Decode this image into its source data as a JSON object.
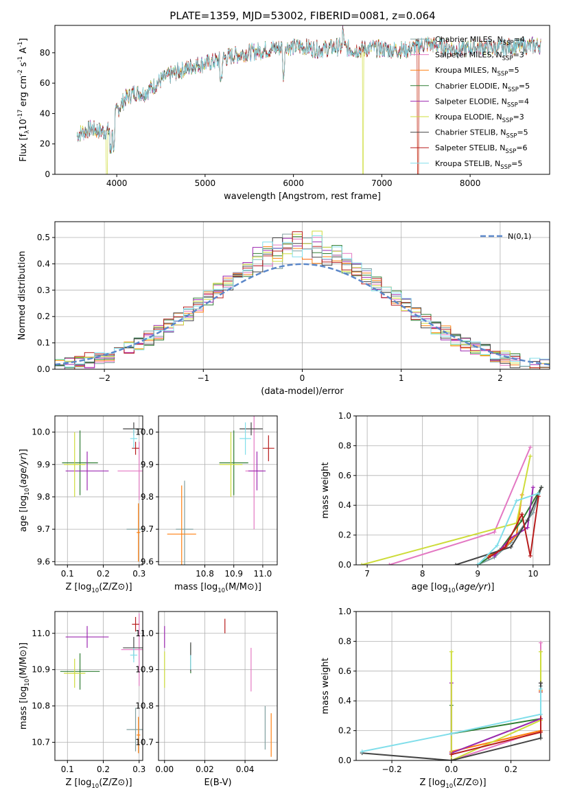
{
  "figure": {
    "title": "PLATE=1359, MJD=53002, FIBERID=0081, z=0.064"
  },
  "models": [
    {
      "label": "Chabrier MILES, N$_{SSP}$=4",
      "color": "#7f9f9f"
    },
    {
      "label": "Salpeter MILES, N$_{SSP}$=3",
      "color": "#e377c2"
    },
    {
      "label": "Kroupa MILES, N$_{SSP}$=5",
      "color": "#ff7f0e"
    },
    {
      "label": "Chabrier ELODIE, N$_{SSP}$=5",
      "color": "#2e7d32"
    },
    {
      "label": "Salpeter ELODIE, N$_{SSP}$=4",
      "color": "#9c27b0"
    },
    {
      "label": "Kroupa ELODIE, N$_{SSP}$=3",
      "color": "#cddc39"
    },
    {
      "label": "Chabrier STELIB, N$_{SSP}$=5",
      "color": "#444444"
    },
    {
      "label": "Salpeter STELIB, N$_{SSP}$=6",
      "color": "#b71c1c"
    },
    {
      "label": "Kroupa STELIB, N$_{SSP}$=5",
      "color": "#80deea"
    }
  ],
  "chart_data": [
    {
      "id": "spectrum",
      "type": "line",
      "xlabel": "wavelength [Angstrom, rest frame]",
      "ylabel": "Flux [f$_\\lambda$10$^{-17}$ erg cm$^{-2}$ s$^{-1}$ A$^{-1}$]",
      "xlim": [
        3300,
        8900
      ],
      "ylim": [
        0,
        98
      ],
      "xticks": [
        4000,
        5000,
        6000,
        7000,
        8000
      ],
      "yticks": [
        0,
        20,
        40,
        60,
        80
      ],
      "legend": "right",
      "continuum": {
        "x": [
          3550,
          3700,
          3850,
          3950,
          4000,
          4100,
          4200,
          4300,
          4400,
          4500,
          4700,
          4900,
          5100,
          5300,
          5500,
          5700,
          5900,
          6100,
          6300,
          6500,
          6700,
          6900,
          7100,
          7300,
          7500,
          7700,
          7900,
          8100,
          8300,
          8500,
          8800
        ],
        "y": [
          26,
          30,
          28,
          30,
          42,
          50,
          54,
          53,
          57,
          62,
          68,
          72,
          74,
          78,
          80,
          82,
          84,
          84,
          82,
          84,
          82,
          83,
          82,
          82,
          86,
          84,
          82,
          84,
          83,
          84,
          85
        ]
      }
    },
    {
      "id": "residuals",
      "type": "histogram",
      "xlabel": "(data-model)/error",
      "ylabel": "Normed distribution",
      "xlim": [
        -2.5,
        2.5
      ],
      "ylim": [
        0,
        0.56
      ],
      "xticks": [
        -2,
        -1,
        0,
        1,
        2
      ],
      "yticks": [
        0.0,
        0.1,
        0.2,
        0.3,
        0.4,
        0.5
      ],
      "grid": true,
      "legend": "top-right",
      "legend_entry": "$\\mathcal{N}(0,1)$",
      "bin_width": 0.1,
      "bin_start": -2.5
    },
    {
      "id": "z-age",
      "type": "scatter",
      "xlabel": "Z [log$_{10}$($Z/Z_\\odot$)]",
      "ylabel": "age  [log$_{10}$($age/yr$)]",
      "xlim": [
        0.065,
        0.31
      ],
      "ylim": [
        9.59,
        10.05
      ],
      "xticks": [
        0.1,
        0.2,
        0.3
      ],
      "yticks": [
        9.6,
        9.7,
        9.8,
        9.9,
        10.0
      ],
      "grid": true,
      "points": [
        {
          "model": 0,
          "x": 0.29,
          "xerr": 0.025,
          "y": 9.7,
          "yerr": 0.0
        },
        {
          "model": 1,
          "x": 0.3,
          "xerr": 0.06,
          "y": 9.88,
          "yerr": 0.09
        },
        {
          "model": 2,
          "x": 0.298,
          "xerr": 0.005,
          "y": 9.69,
          "yerr": 0.09
        },
        {
          "model": 3,
          "x": 0.135,
          "xerr": 0.05,
          "y": 9.905,
          "yerr": 0.1
        },
        {
          "model": 4,
          "x": 0.155,
          "xerr": 0.06,
          "y": 9.88,
          "yerr": 0.06
        },
        {
          "model": 5,
          "x": 0.12,
          "xerr": 0.03,
          "y": 9.9,
          "yerr": 0.1
        },
        {
          "model": 6,
          "x": 0.285,
          "xerr": 0.03,
          "y": 10.01,
          "yerr": 0.02
        },
        {
          "model": 7,
          "x": 0.29,
          "xerr": 0.01,
          "y": 9.95,
          "yerr": 0.02
        },
        {
          "model": 8,
          "x": 0.285,
          "xerr": 0.01,
          "y": 9.98,
          "yerr": 0.03
        }
      ]
    },
    {
      "id": "mass-age",
      "type": "scatter",
      "xlabel": "mass [log$_{10}$($M/M_\\odot$)]",
      "ylabel": "",
      "xlim": [
        10.64,
        11.05
      ],
      "ylim": [
        9.59,
        10.05
      ],
      "xticks": [
        10.8,
        10.9,
        11.0
      ],
      "yticks": [
        9.6,
        9.7,
        9.8,
        9.9,
        10.0
      ],
      "grid": true,
      "points": [
        {
          "model": 0,
          "x": 10.73,
          "xerr": 0.03,
          "y": 9.7,
          "yerr": 0.15
        },
        {
          "model": 1,
          "x": 10.97,
          "xerr": 0.03,
          "y": 9.88,
          "yerr": 0.18
        },
        {
          "model": 2,
          "x": 10.72,
          "xerr": 0.05,
          "y": 9.685,
          "yerr": 0.15
        },
        {
          "model": 3,
          "x": 10.9,
          "xerr": 0.05,
          "y": 9.905,
          "yerr": 0.1
        },
        {
          "model": 4,
          "x": 10.98,
          "xerr": 0.03,
          "y": 9.88,
          "yerr": 0.06
        },
        {
          "model": 5,
          "x": 10.89,
          "xerr": 0.04,
          "y": 9.9,
          "yerr": 0.1
        },
        {
          "model": 6,
          "x": 10.96,
          "xerr": 0.04,
          "y": 10.01,
          "yerr": 0.02
        },
        {
          "model": 7,
          "x": 11.02,
          "xerr": 0.02,
          "y": 9.95,
          "yerr": 0.04
        },
        {
          "model": 8,
          "x": 10.94,
          "xerr": 0.02,
          "y": 9.98,
          "yerr": 0.05
        }
      ]
    },
    {
      "id": "age-weight",
      "type": "line",
      "xlabel": "age  [log$_{10}$($age/yr$)]",
      "ylabel": "mass weight",
      "xlim": [
        6.8,
        10.3
      ],
      "ylim": [
        0,
        1.0
      ],
      "xticks": [
        7,
        8,
        9,
        10
      ],
      "yticks": [
        0.0,
        0.2,
        0.4,
        0.6,
        0.8,
        1.0
      ],
      "grid": true,
      "series": [
        {
          "model": 0,
          "x": [
            9.0,
            9.3,
            9.6,
            10.0,
            10.15
          ],
          "y": [
            0.0,
            0.05,
            0.15,
            0.35,
            0.52
          ]
        },
        {
          "model": 1,
          "x": [
            7.4,
            9.3,
            9.95
          ],
          "y": [
            0.0,
            0.22,
            0.79
          ]
        },
        {
          "model": 2,
          "x": [
            9.2,
            9.5,
            9.7,
            9.8
          ],
          "y": [
            0.06,
            0.12,
            0.2,
            0.47
          ]
        },
        {
          "model": 3,
          "x": [
            9.0,
            9.4,
            9.8,
            10.15
          ],
          "y": [
            0.0,
            0.1,
            0.3,
            0.52
          ]
        },
        {
          "model": 4,
          "x": [
            9.3,
            9.6,
            9.9,
            10.0
          ],
          "y": [
            0.06,
            0.18,
            0.25,
            0.52
          ]
        },
        {
          "model": 5,
          "x": [
            6.9,
            9.7,
            9.95
          ],
          "y": [
            0.0,
            0.28,
            0.73
          ]
        },
        {
          "model": 6,
          "x": [
            8.6,
            9.6,
            9.9,
            10.15
          ],
          "y": [
            0.0,
            0.12,
            0.3,
            0.52
          ]
        },
        {
          "model": 7,
          "x": [
            9.2,
            9.5,
            9.8,
            9.95,
            10.1
          ],
          "y": [
            0.05,
            0.12,
            0.34,
            0.06,
            0.46
          ]
        },
        {
          "model": 8,
          "x": [
            9.0,
            9.35,
            9.7,
            10.1
          ],
          "y": [
            0.0,
            0.13,
            0.43,
            0.48
          ]
        }
      ]
    },
    {
      "id": "z-mass",
      "type": "scatter",
      "xlabel": "Z [log$_{10}$($Z/Z_\\odot$)]",
      "ylabel": "mass [log$_{10}$($M/M_\\odot$)]",
      "xlim": [
        0.065,
        0.31
      ],
      "ylim": [
        10.65,
        11.06
      ],
      "xticks": [
        0.1,
        0.2,
        0.3
      ],
      "yticks": [
        10.7,
        10.8,
        10.9,
        11.0
      ],
      "grid": true,
      "points": [
        {
          "model": 0,
          "x": 0.29,
          "xerr": 0.025,
          "y": 10.735,
          "yerr": 0.06
        },
        {
          "model": 1,
          "x": 0.3,
          "xerr": 0.05,
          "y": 10.955,
          "yerr": 0.1
        },
        {
          "model": 2,
          "x": 0.298,
          "xerr": 0.005,
          "y": 10.72,
          "yerr": 0.05
        },
        {
          "model": 3,
          "x": 0.135,
          "xerr": 0.055,
          "y": 10.895,
          "yerr": 0.05
        },
        {
          "model": 4,
          "x": 0.155,
          "xerr": 0.06,
          "y": 10.99,
          "yerr": 0.03
        },
        {
          "model": 5,
          "x": 0.12,
          "xerr": 0.03,
          "y": 10.89,
          "yerr": 0.04
        },
        {
          "model": 6,
          "x": 0.285,
          "xerr": 0.03,
          "y": 10.96,
          "yerr": 0.03
        },
        {
          "model": 7,
          "x": 0.29,
          "xerr": 0.01,
          "y": 11.025,
          "yerr": 0.02
        },
        {
          "model": 8,
          "x": 0.285,
          "xerr": 0.01,
          "y": 10.94,
          "yerr": 0.02
        }
      ]
    },
    {
      "id": "ebv-mass",
      "type": "scatter",
      "xlabel": "E(B-V)",
      "ylabel": "",
      "xlim": [
        -0.003,
        0.056
      ],
      "ylim": [
        10.65,
        11.06
      ],
      "xticks": [
        0.0,
        0.02,
        0.04
      ],
      "yticks": [
        10.7,
        10.8,
        10.9,
        11.0
      ],
      "grid": true,
      "points": [
        {
          "model": 0,
          "x": 0.05,
          "xerr": 0.0,
          "y": 10.74,
          "yerr": 0.06
        },
        {
          "model": 1,
          "x": 0.043,
          "xerr": 0.0,
          "y": 10.9,
          "yerr": 0.06
        },
        {
          "model": 2,
          "x": 0.053,
          "xerr": 0.0,
          "y": 10.72,
          "yerr": 0.06
        },
        {
          "model": 3,
          "x": 0.013,
          "xerr": 0.0,
          "y": 10.93,
          "yerr": 0.04
        },
        {
          "model": 4,
          "x": 0.0,
          "xerr": 0.0,
          "y": 10.99,
          "yerr": 0.03
        },
        {
          "model": 5,
          "x": 0.0,
          "xerr": 0.0,
          "y": 10.9,
          "yerr": 0.05
        },
        {
          "model": 6,
          "x": 0.013,
          "xerr": 0.0,
          "y": 10.935,
          "yerr": 0.04
        },
        {
          "model": 7,
          "x": 0.03,
          "xerr": 0.0,
          "y": 11.02,
          "yerr": 0.02
        },
        {
          "model": 8,
          "x": 0.013,
          "xerr": 0.0,
          "y": 10.92,
          "yerr": 0.02
        }
      ]
    },
    {
      "id": "z-weight",
      "type": "line",
      "xlabel": "Z [log$_{10}$($Z/Z_\\odot$)]",
      "ylabel": "mass weight",
      "xlim": [
        -0.32,
        0.33
      ],
      "ylim": [
        0,
        1.0
      ],
      "xticks": [
        -0.2,
        0.0,
        0.2
      ],
      "yticks": [
        0.0,
        0.2,
        0.4,
        0.6,
        0.8,
        1.0
      ],
      "grid": true,
      "series": [
        {
          "model": 0,
          "x": [
            0.0,
            0.3,
            0.3
          ],
          "y": [
            0.05,
            0.28,
            0.5
          ]
        },
        {
          "model": 1,
          "x": [
            0.0,
            0.3,
            0.3
          ],
          "y": [
            0.0,
            0.2,
            0.79
          ]
        },
        {
          "model": 2,
          "x": [
            0.0,
            0.3,
            0.3
          ],
          "y": [
            0.06,
            0.2,
            0.47
          ]
        },
        {
          "model": 3,
          "x": [
            0.0,
            0.0,
            0.3,
            0.3
          ],
          "y": [
            0.37,
            0.18,
            0.28,
            0.52
          ]
        },
        {
          "model": 4,
          "x": [
            0.0,
            0.0,
            0.3,
            0.3
          ],
          "y": [
            0.52,
            0.05,
            0.28,
            0.52
          ]
        },
        {
          "model": 5,
          "x": [
            0.0,
            0.0,
            0.3,
            0.3
          ],
          "y": [
            0.73,
            0.0,
            0.27,
            0.73
          ]
        },
        {
          "model": 6,
          "x": [
            -0.3,
            0.0,
            0.3,
            0.3
          ],
          "y": [
            0.05,
            0.0,
            0.15,
            0.52
          ]
        },
        {
          "model": 7,
          "x": [
            0.0,
            0.3,
            0.3
          ],
          "y": [
            0.04,
            0.19,
            0.46
          ]
        },
        {
          "model": 8,
          "x": [
            -0.3,
            0.0,
            0.3,
            0.3
          ],
          "y": [
            0.06,
            0.18,
            0.31,
            0.48
          ]
        }
      ]
    }
  ]
}
